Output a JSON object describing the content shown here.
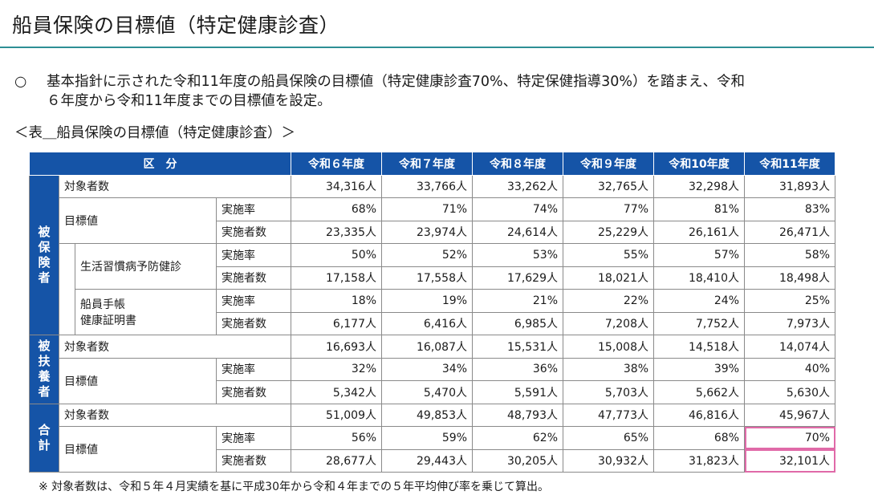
{
  "title": "船員保険の目標値（特定健康診査）",
  "bullet": {
    "mark": "○",
    "line1": "基本指針に示された令和11年度の船員保険の目標値（特定健康診査70%、特定保健指導30%）を踏まえ、令和",
    "line2": "６年度から令和11年度までの目標値を設定。"
  },
  "table_caption": "＜表＿船員保険の目標値（特定健康診査）＞",
  "table": {
    "header": {
      "kubun": "区　分",
      "years": [
        "令和６年度",
        "令和７年度",
        "令和８年度",
        "令和９年度",
        "令和10年度",
        "令和11年度"
      ]
    },
    "groups": {
      "hihokensha": "被保険者",
      "hifuyousha": "被扶養者",
      "goukei": "合計"
    },
    "labels": {
      "taishosha": "対象者数",
      "mokuhyou": "目標値",
      "jisshiritsu": "実施率",
      "jisshishasu": "実施者数",
      "seikatsu": "生活習慣病予防健診",
      "techo_line1": "船員手帳",
      "techo_line2": "健康証明書"
    },
    "rows": {
      "h_taishosha": [
        "34,316人",
        "33,766人",
        "33,262人",
        "32,765人",
        "32,298人",
        "31,893人"
      ],
      "h_rate": [
        "68%",
        "71%",
        "74%",
        "77%",
        "81%",
        "83%"
      ],
      "h_count": [
        "23,335人",
        "23,974人",
        "24,614人",
        "25,229人",
        "26,161人",
        "26,471人"
      ],
      "s_rate": [
        "50%",
        "52%",
        "53%",
        "55%",
        "57%",
        "58%"
      ],
      "s_count": [
        "17,158人",
        "17,558人",
        "17,629人",
        "18,021人",
        "18,410人",
        "18,498人"
      ],
      "t_rate": [
        "18%",
        "19%",
        "21%",
        "22%",
        "24%",
        "25%"
      ],
      "t_count": [
        "6,177人",
        "6,416人",
        "6,985人",
        "7,208人",
        "7,752人",
        "7,973人"
      ],
      "f_taishosha": [
        "16,693人",
        "16,087人",
        "15,531人",
        "15,008人",
        "14,518人",
        "14,074人"
      ],
      "f_rate": [
        "32%",
        "34%",
        "36%",
        "38%",
        "39%",
        "40%"
      ],
      "f_count": [
        "5,342人",
        "5,470人",
        "5,591人",
        "5,703人",
        "5,662人",
        "5,630人"
      ],
      "g_taishosha": [
        "51,009人",
        "49,853人",
        "48,793人",
        "47,773人",
        "46,816人",
        "45,967人"
      ],
      "g_rate": [
        "56%",
        "59%",
        "62%",
        "65%",
        "68%",
        "70%"
      ],
      "g_count": [
        "28,677人",
        "29,443人",
        "30,205人",
        "30,932人",
        "31,823人",
        "32,101人"
      ]
    }
  },
  "note": "※ 対象者数は、令和５年４月実績を基に平成30年から令和４年までの５年平均伸び率を乗じて算出。",
  "colors": {
    "header_blue": "#1554a7",
    "title_rule": "#2d8f95",
    "highlight_pink": "#e06aa8"
  }
}
